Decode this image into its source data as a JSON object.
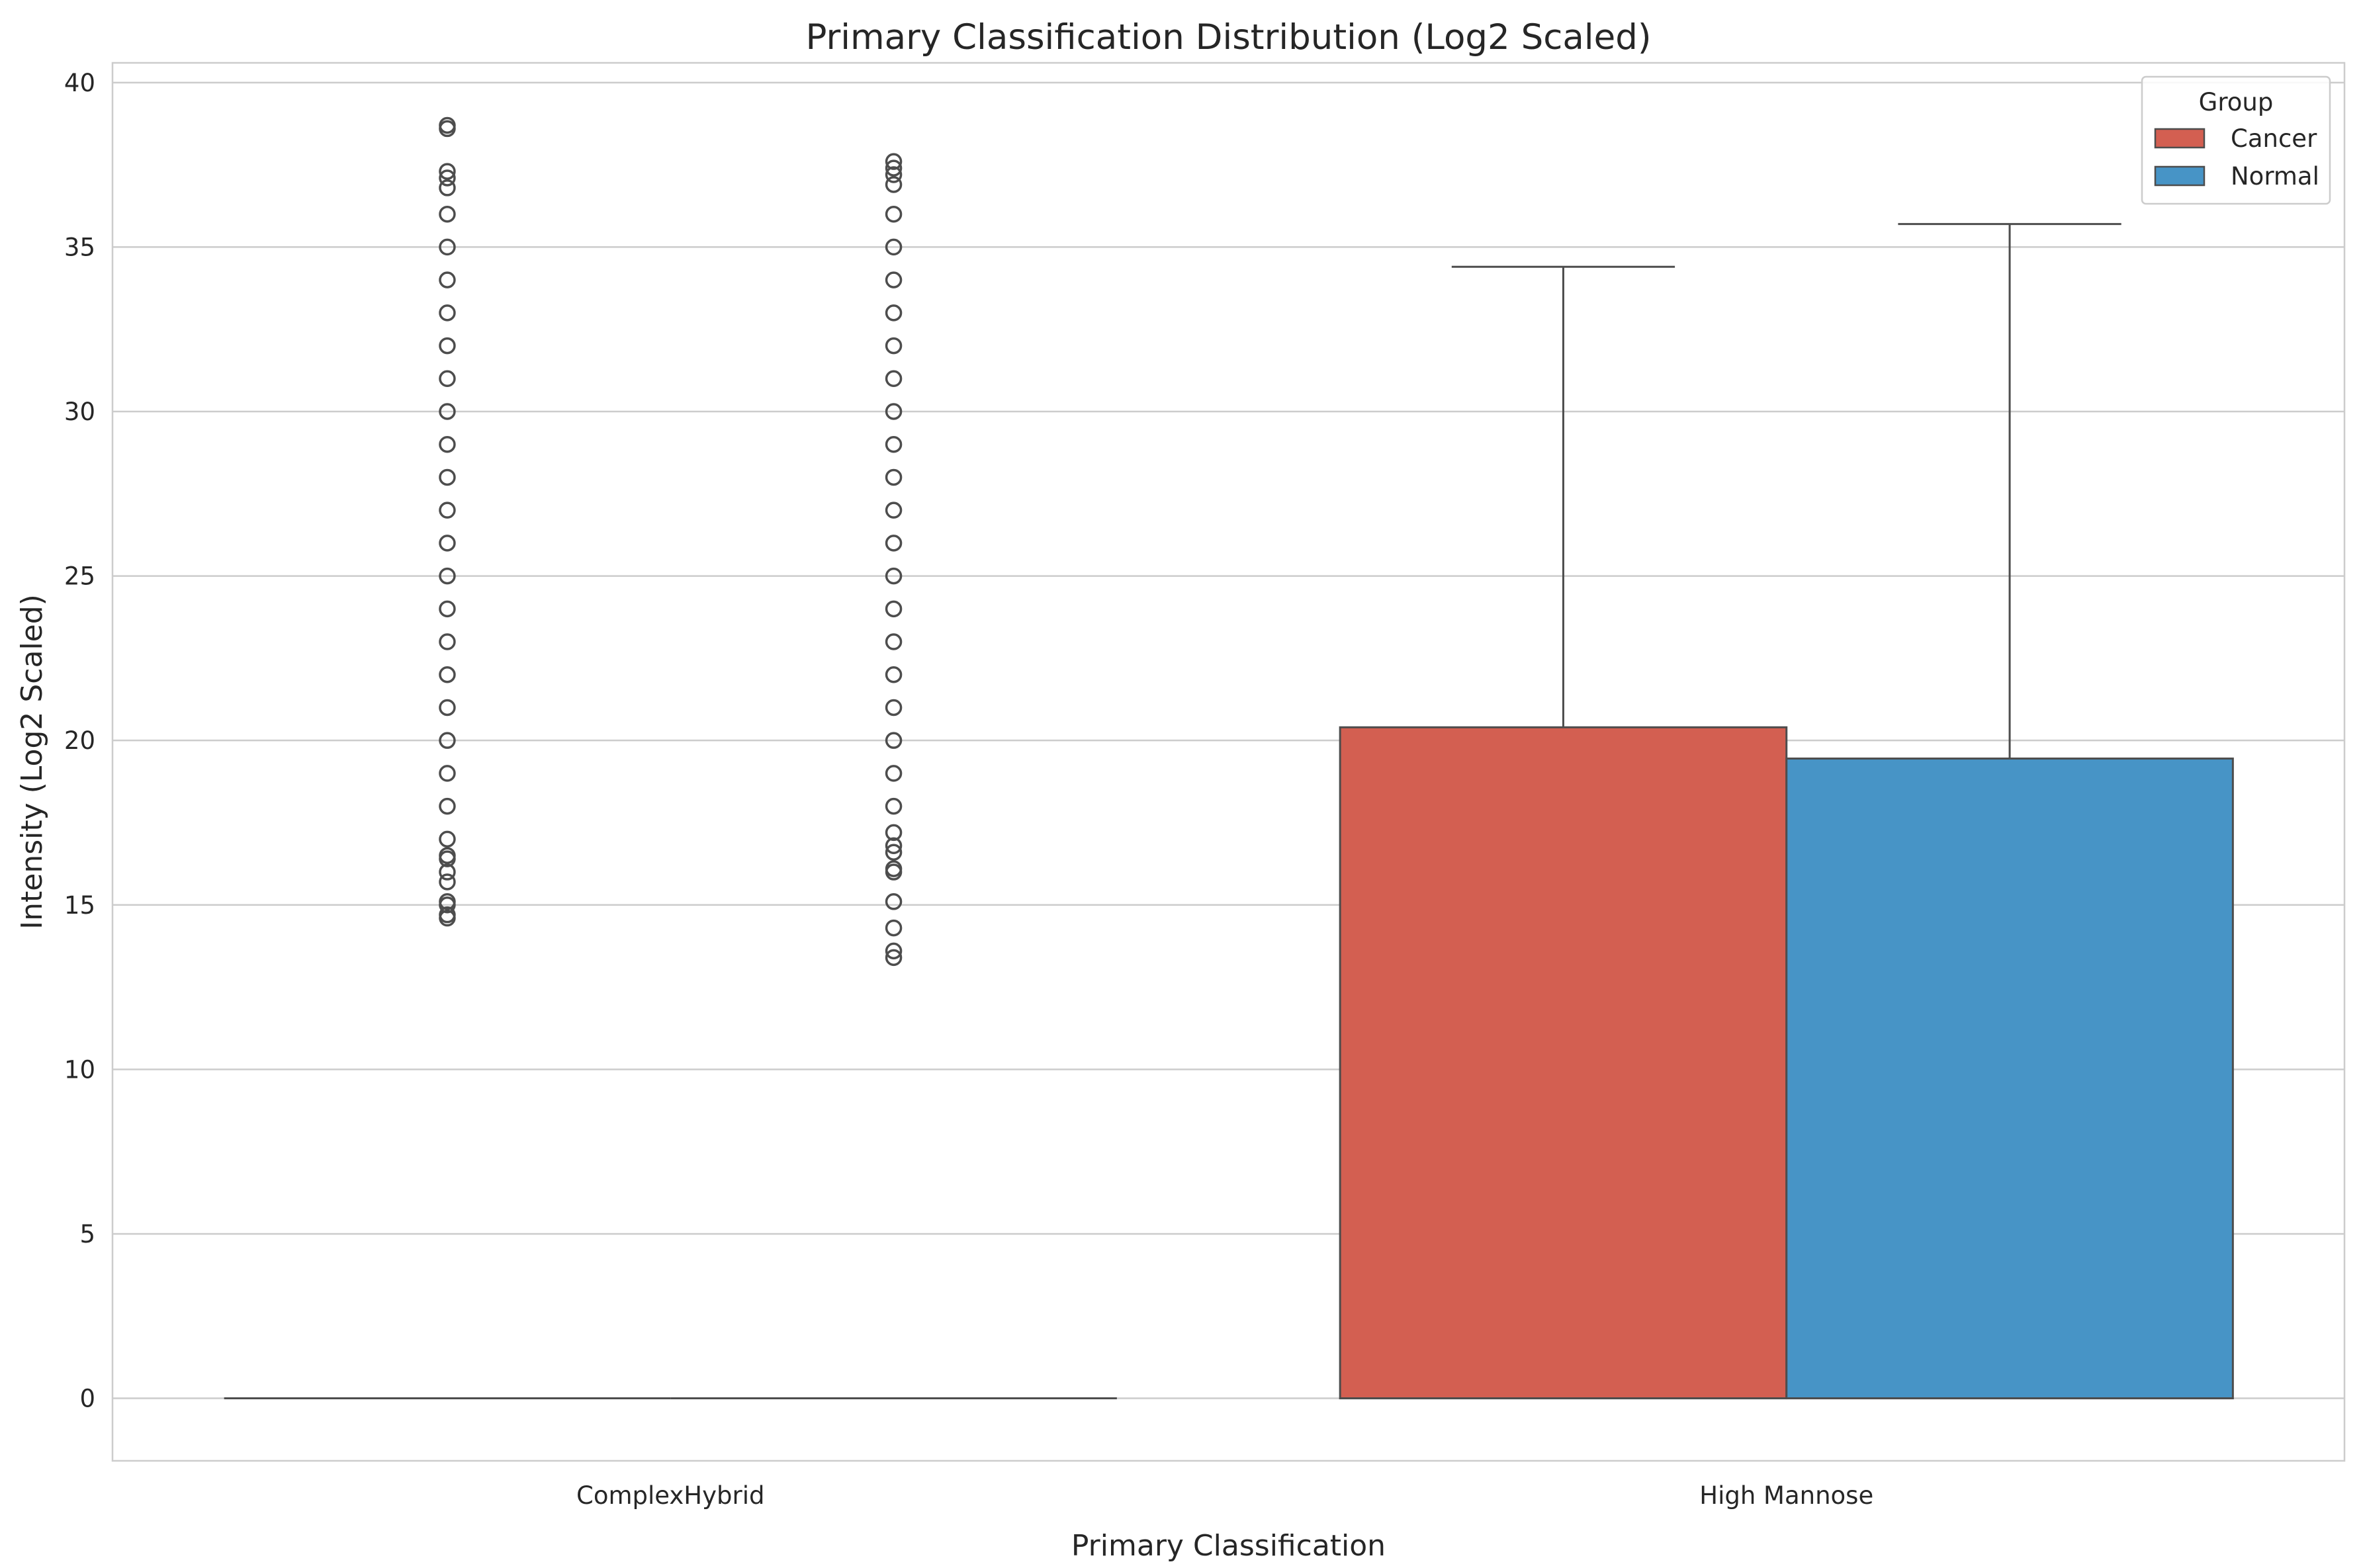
{
  "chart_data": {
    "type": "box",
    "title": "Primary Classification Distribution (Log2 Scaled)",
    "xlabel": "Primary Classification",
    "ylabel": "Intensity (Log2 Scaled)",
    "categories": [
      "ComplexHybrid",
      "High Mannose"
    ],
    "ylim": [
      -1.9,
      40.6
    ],
    "yticks": [
      0,
      5,
      10,
      15,
      20,
      25,
      30,
      35,
      40
    ],
    "grid": true,
    "legend": {
      "title": "Group",
      "position": "top-right",
      "entries": [
        "Cancer",
        "Normal"
      ]
    },
    "colors": {
      "Cancer": "#d35f51",
      "Normal": "#4794c6",
      "edge": "#4d4d4d",
      "grid": "#cccccc",
      "frame": "#cccccc"
    },
    "series": [
      {
        "name": "Cancer",
        "boxes": [
          {
            "category": "ComplexHybrid",
            "q1": 0,
            "median": 0,
            "q3": 0,
            "whisker_low": 0,
            "whisker_high": 0,
            "outliers": [
              14.6,
              14.7,
              15.0,
              15.1,
              15.7,
              16.0,
              16.4,
              16.5,
              17.0,
              18.0,
              19.0,
              20.0,
              21.0,
              22.0,
              23.0,
              24.0,
              25.0,
              26.0,
              27.0,
              28.0,
              29.0,
              30.0,
              31.0,
              32.0,
              33.0,
              34.0,
              35.0,
              36.0,
              36.8,
              37.1,
              37.3,
              38.6,
              38.7
            ]
          },
          {
            "category": "High Mannose",
            "q1": 0,
            "median": 0,
            "q3": 20.4,
            "whisker_low": 0,
            "whisker_high": 34.4,
            "outliers": []
          }
        ]
      },
      {
        "name": "Normal",
        "boxes": [
          {
            "category": "ComplexHybrid",
            "q1": 0,
            "median": 0,
            "q3": 0,
            "whisker_low": 0,
            "whisker_high": 0,
            "outliers": [
              13.4,
              13.6,
              14.3,
              15.1,
              16.0,
              16.1,
              16.6,
              16.8,
              17.2,
              18.0,
              19.0,
              20.0,
              21.0,
              22.0,
              23.0,
              24.0,
              25.0,
              26.0,
              27.0,
              28.0,
              29.0,
              30.0,
              31.0,
              32.0,
              33.0,
              34.0,
              35.0,
              36.0,
              36.9,
              37.2,
              37.4,
              37.6
            ]
          },
          {
            "category": "High Mannose",
            "q1": 0,
            "median": 0,
            "q3": 19.45,
            "whisker_low": 0,
            "whisker_high": 35.7,
            "outliers": []
          }
        ]
      }
    ]
  }
}
